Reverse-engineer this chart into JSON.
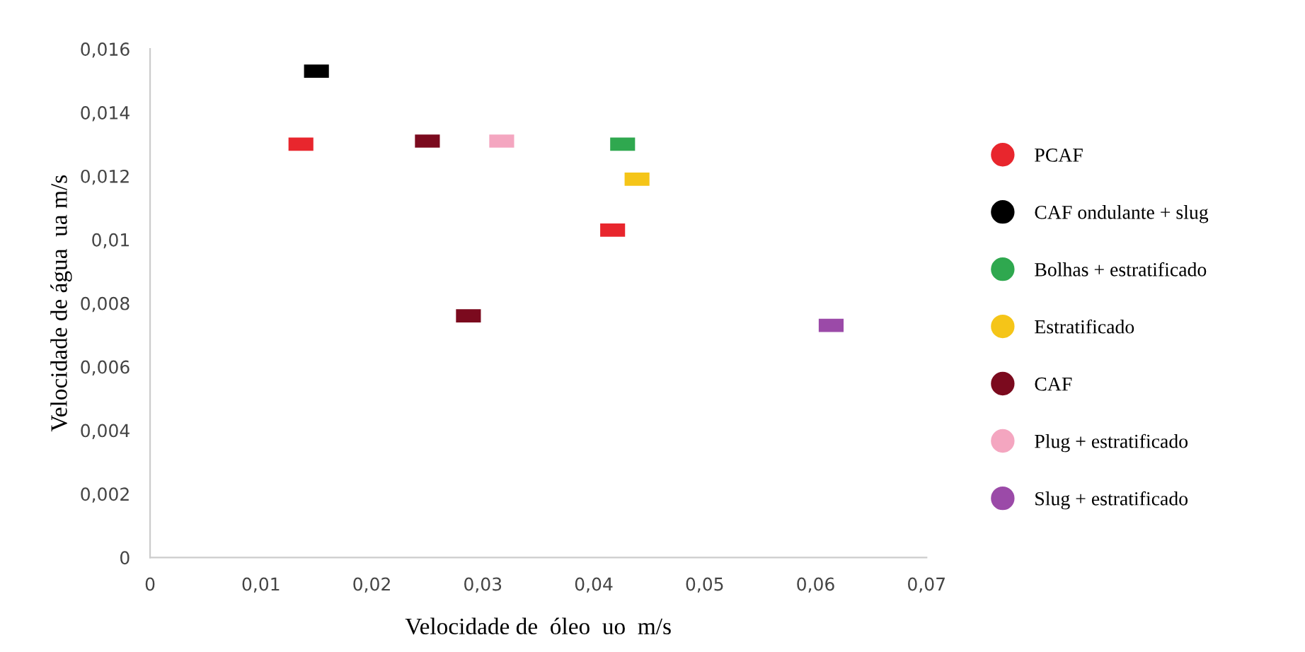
{
  "chart_data": {
    "type": "scatter",
    "xlabel": "Velocidade de  óleo  uo  m/s",
    "ylabel": "Velocidade de água  ua m/s",
    "xlim": [
      0,
      0.07
    ],
    "ylim": [
      0,
      0.016
    ],
    "xticks": [
      {
        "value": 0,
        "label": "0"
      },
      {
        "value": 0.01,
        "label": "0,01"
      },
      {
        "value": 0.02,
        "label": "0,02"
      },
      {
        "value": 0.03,
        "label": "0,03"
      },
      {
        "value": 0.04,
        "label": "0,04"
      },
      {
        "value": 0.05,
        "label": "0,05"
      },
      {
        "value": 0.06,
        "label": "0,06"
      },
      {
        "value": 0.07,
        "label": "0,07"
      }
    ],
    "yticks": [
      {
        "value": 0,
        "label": "0"
      },
      {
        "value": 0.002,
        "label": "0,002"
      },
      {
        "value": 0.004,
        "label": "0,004"
      },
      {
        "value": 0.006,
        "label": "0,006"
      },
      {
        "value": 0.008,
        "label": "0,008"
      },
      {
        "value": 0.01,
        "label": "0,01"
      },
      {
        "value": 0.012,
        "label": "0,012"
      },
      {
        "value": 0.014,
        "label": "0,014"
      },
      {
        "value": 0.016,
        "label": "0,016"
      }
    ],
    "grid": false,
    "legend": "right",
    "marker": "square",
    "series": [
      {
        "name": "PCAF",
        "color": "#e8262d",
        "x": [
          0.0136,
          0.0417
        ],
        "values": [
          0.013,
          0.0103
        ]
      },
      {
        "name": "CAF ondulante + slug",
        "color": "#000000",
        "x": [
          0.015
        ],
        "values": [
          0.0153
        ]
      },
      {
        "name": "Bolhas + estratificado",
        "color": "#2fa84f",
        "x": [
          0.0426
        ],
        "values": [
          0.013
        ]
      },
      {
        "name": "Estratificado",
        "color": "#f5c518",
        "x": [
          0.0439
        ],
        "values": [
          0.0119
        ]
      },
      {
        "name": "CAF",
        "color": "#7b0a1e",
        "x": [
          0.025,
          0.0287
        ],
        "values": [
          0.0131,
          0.0076
        ]
      },
      {
        "name": "Plug + estratificado",
        "color": "#f4a6c0",
        "x": [
          0.0317
        ],
        "values": [
          0.0131
        ]
      },
      {
        "name": "Slug + estratificado",
        "color": "#9b4aa8",
        "x": [
          0.0614
        ],
        "values": [
          0.0073
        ]
      }
    ]
  }
}
